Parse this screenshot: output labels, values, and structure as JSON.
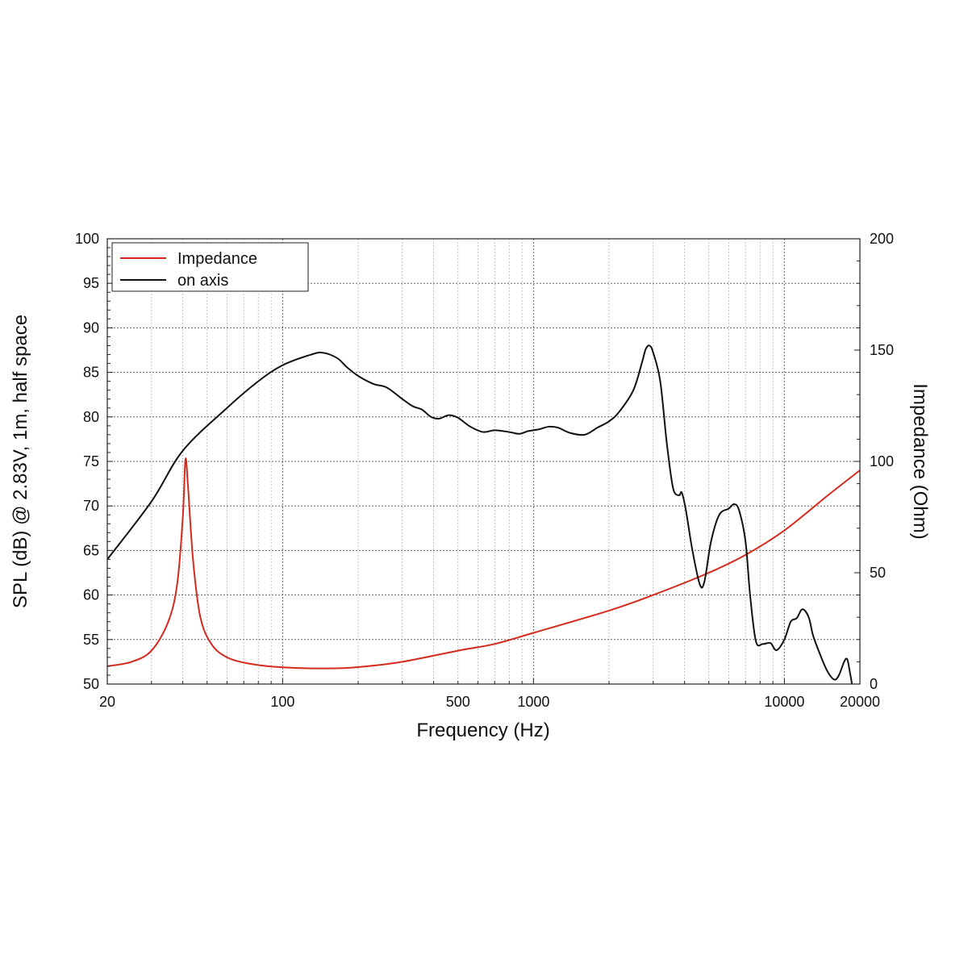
{
  "chart_data": {
    "type": "line",
    "xlabel": "Frequency (Hz)",
    "ylabel_left": "SPL (dB) @ 2.83V, 1m, half space",
    "ylabel_right": "Impedance (Ohm)",
    "x_scale": "log",
    "xlim": [
      20,
      20000
    ],
    "ylim_left": [
      50,
      100
    ],
    "ylim_right": [
      0,
      200
    ],
    "x_tick_labels": [
      "20",
      "100",
      "500",
      "1000",
      "10000",
      "20000"
    ],
    "y_left_tick_labels": [
      "100",
      "95",
      "90",
      "85",
      "80",
      "75",
      "70",
      "65",
      "60",
      "55",
      "50"
    ],
    "y_right_tick_labels": [
      "200",
      "150",
      "100",
      "50",
      "0"
    ],
    "grid": true,
    "legend_position": "top-left",
    "series": [
      {
        "name": "Impedance",
        "axis": "right",
        "color": "#d42a1e",
        "points": [
          [
            20,
            8
          ],
          [
            25,
            10
          ],
          [
            30,
            15
          ],
          [
            35,
            28
          ],
          [
            38,
            45
          ],
          [
            40,
            75
          ],
          [
            41,
            101
          ],
          [
            42,
            88
          ],
          [
            44,
            55
          ],
          [
            47,
            30
          ],
          [
            52,
            18
          ],
          [
            60,
            12
          ],
          [
            75,
            9
          ],
          [
            100,
            7.5
          ],
          [
            150,
            7.0
          ],
          [
            200,
            7.6
          ],
          [
            300,
            10
          ],
          [
            500,
            15
          ],
          [
            700,
            18
          ],
          [
            1000,
            23
          ],
          [
            2000,
            33
          ],
          [
            3000,
            40
          ],
          [
            5000,
            50
          ],
          [
            7000,
            58
          ],
          [
            10000,
            69
          ],
          [
            15000,
            85
          ],
          [
            20000,
            96
          ]
        ]
      },
      {
        "name": "on axis",
        "axis": "left",
        "color": "#111111",
        "points": [
          [
            20,
            64
          ],
          [
            30,
            70.5
          ],
          [
            40,
            76.2
          ],
          [
            60,
            81
          ],
          [
            80,
            84
          ],
          [
            100,
            85.8
          ],
          [
            130,
            87
          ],
          [
            145,
            87.2
          ],
          [
            165,
            86.6
          ],
          [
            180,
            85.6
          ],
          [
            200,
            84.6
          ],
          [
            230,
            83.7
          ],
          [
            260,
            83.3
          ],
          [
            300,
            82
          ],
          [
            330,
            81.2
          ],
          [
            360,
            80.8
          ],
          [
            390,
            80
          ],
          [
            420,
            79.8
          ],
          [
            460,
            80.2
          ],
          [
            500,
            79.9
          ],
          [
            560,
            78.9
          ],
          [
            630,
            78.3
          ],
          [
            700,
            78.5
          ],
          [
            800,
            78.3
          ],
          [
            880,
            78.1
          ],
          [
            950,
            78.4
          ],
          [
            1050,
            78.6
          ],
          [
            1150,
            78.9
          ],
          [
            1250,
            78.8
          ],
          [
            1400,
            78.2
          ],
          [
            1600,
            78
          ],
          [
            1800,
            78.8
          ],
          [
            2000,
            79.5
          ],
          [
            2200,
            80.6
          ],
          [
            2500,
            83
          ],
          [
            2700,
            86
          ],
          [
            2800,
            87.6
          ],
          [
            2900,
            88
          ],
          [
            3000,
            87.2
          ],
          [
            3200,
            84
          ],
          [
            3400,
            77
          ],
          [
            3600,
            72
          ],
          [
            3800,
            71.2
          ],
          [
            3900,
            71.5
          ],
          [
            4050,
            69.5
          ],
          [
            4300,
            65
          ],
          [
            4600,
            61.2
          ],
          [
            4800,
            61.5
          ],
          [
            5100,
            66
          ],
          [
            5500,
            69
          ],
          [
            6000,
            69.7
          ],
          [
            6300,
            70.2
          ],
          [
            6600,
            69.5
          ],
          [
            7000,
            66
          ],
          [
            7300,
            60
          ],
          [
            7700,
            54.8
          ],
          [
            8200,
            54.5
          ],
          [
            8800,
            54.6
          ],
          [
            9300,
            53.8
          ],
          [
            10000,
            55
          ],
          [
            10600,
            57
          ],
          [
            11200,
            57.4
          ],
          [
            11800,
            58.4
          ],
          [
            12500,
            57.5
          ],
          [
            13000,
            55.5
          ],
          [
            13800,
            53.5
          ],
          [
            14800,
            51.5
          ],
          [
            15800,
            50.5
          ],
          [
            16500,
            51
          ],
          [
            17300,
            52.5
          ],
          [
            17800,
            52.8
          ],
          [
            18200,
            51.5
          ],
          [
            18600,
            50
          ]
        ]
      }
    ]
  }
}
